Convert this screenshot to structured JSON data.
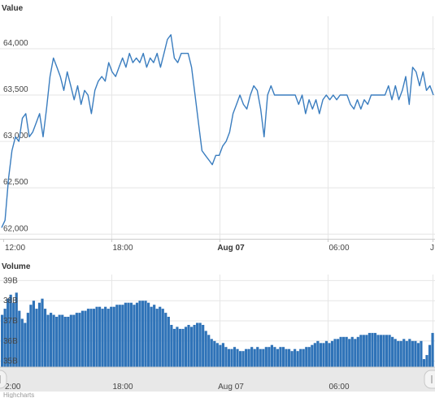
{
  "chart_data": [
    {
      "type": "line",
      "ylabel": "Value",
      "yticks": [
        "62,000",
        "62,500",
        "63,000",
        "63,500",
        "64,000"
      ],
      "ylim": [
        61950,
        64350
      ],
      "grid": true,
      "line_color": "#3a7dbf",
      "series": [
        {
          "points": [
            [
              0,
              62070
            ],
            [
              1,
              62150
            ],
            [
              2,
              62600
            ],
            [
              3,
              62900
            ],
            [
              4,
              63050
            ],
            [
              5,
              63000
            ],
            [
              6,
              63250
            ],
            [
              7,
              63300
            ],
            [
              8,
              63050
            ],
            [
              9,
              63100
            ],
            [
              10,
              63200
            ],
            [
              11,
              63300
            ],
            [
              12,
              63050
            ],
            [
              13,
              63350
            ],
            [
              14,
              63700
            ],
            [
              15,
              63900
            ],
            [
              16,
              63800
            ],
            [
              17,
              63700
            ],
            [
              18,
              63550
            ],
            [
              19,
              63750
            ],
            [
              20,
              63600
            ],
            [
              21,
              63450
            ],
            [
              22,
              63600
            ],
            [
              23,
              63400
            ],
            [
              24,
              63550
            ],
            [
              25,
              63500
            ],
            [
              26,
              63300
            ],
            [
              27,
              63550
            ],
            [
              28,
              63650
            ],
            [
              29,
              63700
            ],
            [
              30,
              63650
            ],
            [
              31,
              63850
            ],
            [
              32,
              63750
            ],
            [
              33,
              63700
            ],
            [
              34,
              63800
            ],
            [
              35,
              63900
            ],
            [
              36,
              63800
            ],
            [
              37,
              63950
            ],
            [
              38,
              63850
            ],
            [
              39,
              63900
            ],
            [
              40,
              63850
            ],
            [
              41,
              63950
            ],
            [
              42,
              63800
            ],
            [
              43,
              63900
            ],
            [
              44,
              63850
            ],
            [
              45,
              63950
            ],
            [
              46,
              63800
            ],
            [
              47,
              63950
            ],
            [
              48,
              64100
            ],
            [
              49,
              64150
            ],
            [
              50,
              63900
            ],
            [
              51,
              63850
            ],
            [
              52,
              63950
            ],
            [
              53,
              63950
            ],
            [
              54,
              63950
            ],
            [
              55,
              63800
            ],
            [
              56,
              63500
            ],
            [
              57,
              63200
            ],
            [
              58,
              62900
            ],
            [
              59,
              62850
            ],
            [
              60,
              62800
            ],
            [
              61,
              62750
            ],
            [
              62,
              62850
            ],
            [
              63,
              62850
            ],
            [
              64,
              62950
            ],
            [
              65,
              63000
            ],
            [
              66,
              63100
            ],
            [
              67,
              63300
            ],
            [
              68,
              63400
            ],
            [
              69,
              63500
            ],
            [
              70,
              63400
            ],
            [
              71,
              63350
            ],
            [
              72,
              63500
            ],
            [
              73,
              63600
            ],
            [
              74,
              63550
            ],
            [
              75,
              63350
            ],
            [
              76,
              63050
            ],
            [
              77,
              63500
            ],
            [
              78,
              63600
            ],
            [
              79,
              63500
            ],
            [
              80,
              63500
            ],
            [
              81,
              63500
            ],
            [
              82,
              63500
            ],
            [
              83,
              63500
            ],
            [
              84,
              63500
            ],
            [
              85,
              63500
            ],
            [
              86,
              63400
            ],
            [
              87,
              63500
            ],
            [
              88,
              63300
            ],
            [
              89,
              63450
            ],
            [
              90,
              63350
            ],
            [
              91,
              63450
            ],
            [
              92,
              63300
            ],
            [
              93,
              63450
            ],
            [
              94,
              63500
            ],
            [
              95,
              63450
            ],
            [
              96,
              63500
            ],
            [
              97,
              63450
            ],
            [
              98,
              63500
            ],
            [
              99,
              63500
            ],
            [
              100,
              63500
            ],
            [
              101,
              63400
            ],
            [
              102,
              63350
            ],
            [
              103,
              63450
            ],
            [
              104,
              63350
            ],
            [
              105,
              63450
            ],
            [
              106,
              63400
            ],
            [
              107,
              63500
            ],
            [
              108,
              63500
            ],
            [
              109,
              63500
            ],
            [
              110,
              63500
            ],
            [
              111,
              63500
            ],
            [
              112,
              63600
            ],
            [
              113,
              63450
            ],
            [
              114,
              63600
            ],
            [
              115,
              63450
            ],
            [
              116,
              63550
            ],
            [
              117,
              63700
            ],
            [
              118,
              63400
            ],
            [
              119,
              63800
            ],
            [
              120,
              63750
            ],
            [
              121,
              63600
            ],
            [
              122,
              63750
            ],
            [
              123,
              63550
            ],
            [
              124,
              63600
            ],
            [
              125,
              63500
            ]
          ]
        }
      ]
    },
    {
      "type": "bar",
      "ylabel": "Volume",
      "yticks": [
        "35B",
        "36B",
        "37B",
        "38B",
        "39B"
      ],
      "ylim": [
        34.7,
        39.3
      ],
      "bar_color": "#2f73b8",
      "values": [
        37.3,
        37.6,
        38.1,
        38.3,
        37.9,
        38.4,
        37.5,
        37.1,
        36.9,
        37.4,
        37.8,
        38.0,
        37.6,
        37.9,
        38.1,
        37.6,
        37.3,
        37.4,
        37.3,
        37.2,
        37.3,
        37.3,
        37.2,
        37.2,
        37.3,
        37.3,
        37.4,
        37.4,
        37.5,
        37.5,
        37.6,
        37.6,
        37.6,
        37.7,
        37.7,
        37.6,
        37.7,
        37.6,
        37.7,
        37.7,
        37.8,
        37.8,
        37.8,
        37.9,
        37.9,
        37.9,
        37.8,
        37.9,
        38.0,
        38.0,
        38.0,
        37.9,
        37.7,
        37.8,
        37.6,
        37.7,
        37.6,
        37.4,
        37.2,
        36.8,
        36.6,
        36.7,
        36.6,
        36.6,
        36.7,
        36.8,
        36.7,
        36.8,
        36.9,
        36.9,
        36.8,
        36.5,
        36.3,
        36.1,
        36.0,
        35.9,
        35.8,
        35.9,
        35.7,
        35.6,
        35.6,
        35.7,
        35.6,
        35.5,
        35.5,
        35.6,
        35.6,
        35.7,
        35.6,
        35.7,
        35.6,
        35.6,
        35.7,
        35.7,
        35.8,
        35.7,
        35.6,
        35.7,
        35.7,
        35.6,
        35.6,
        35.5,
        35.6,
        35.5,
        35.6,
        35.6,
        35.7,
        35.7,
        35.8,
        35.9,
        36.0,
        35.9,
        35.9,
        36.0,
        35.9,
        36.0,
        36.1,
        36.1,
        36.2,
        36.2,
        36.2,
        36.1,
        36.2,
        36.1,
        36.2,
        36.3,
        36.3,
        36.3,
        36.4,
        36.4,
        36.4,
        36.3,
        36.3,
        36.3,
        36.3,
        36.3,
        36.2,
        36.1,
        36.0,
        36.0,
        36.1,
        36.0,
        36.1,
        36.0,
        36.0,
        35.9,
        36.0,
        35.1,
        35.3,
        35.8,
        36.4
      ]
    }
  ],
  "xticks": [
    {
      "label": "12:00",
      "bold": false
    },
    {
      "label": "18:00",
      "bold": false
    },
    {
      "label": "Aug 07",
      "bold": true
    },
    {
      "label": "06:00",
      "bold": false
    },
    {
      "label": "J",
      "bold": false
    }
  ],
  "navigator": {
    "xticks": [
      "2:00",
      "18:00",
      "Aug 07",
      "06:00"
    ],
    "left_handle_icon": "scroll-left-icon",
    "right_handle_icon": "scroll-right-icon"
  },
  "credit": "Highcharts"
}
